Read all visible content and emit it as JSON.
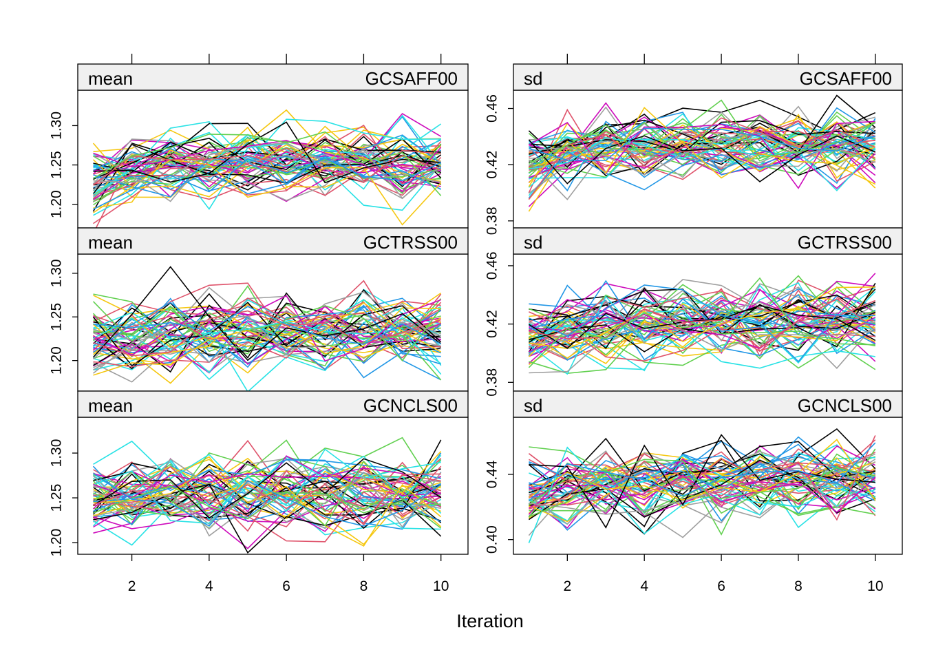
{
  "chart_data": {
    "type": "line",
    "xlabel": "Iteration",
    "x_ticks": [
      2,
      4,
      6,
      8,
      10
    ],
    "xlim": [
      0.6,
      10.7
    ],
    "n_chains": 60,
    "iterations": [
      1,
      2,
      3,
      4,
      5,
      6,
      7,
      8,
      9,
      10
    ],
    "palette": [
      "#000000",
      "#DF536B",
      "#61D04F",
      "#2297E6",
      "#28E2E5",
      "#CD0BBC",
      "#F5C710",
      "#9E9E9E"
    ],
    "panels": [
      {
        "stat": "mean",
        "variable": "GCSAFF00",
        "ylim": [
          1.17,
          1.345
        ],
        "y_ticks": [
          "1.20",
          "1.25",
          "1.30"
        ],
        "center": 1.252,
        "spread": 0.022,
        "drift_start": -0.025
      },
      {
        "stat": "sd",
        "variable": "GCSAFF00",
        "ylim": [
          0.375,
          0.473
        ],
        "y_ticks": [
          "0.38",
          "0.42",
          "0.46"
        ],
        "center": 0.434,
        "spread": 0.011,
        "drift_start": -0.014
      },
      {
        "stat": "mean",
        "variable": "GCTRSS00",
        "ylim": [
          1.165,
          1.322
        ],
        "y_ticks": [
          "1.20",
          "1.25",
          "1.30"
        ],
        "center": 1.233,
        "spread": 0.02,
        "drift_start": -0.015
      },
      {
        "stat": "sd",
        "variable": "GCTRSS00",
        "ylim": [
          0.374,
          0.468
        ],
        "y_ticks": [
          "0.38",
          "0.42",
          "0.46"
        ],
        "center": 0.422,
        "spread": 0.012,
        "drift_start": -0.01
      },
      {
        "stat": "mean",
        "variable": "GCNCLS00",
        "ylim": [
          1.187,
          1.34
        ],
        "y_ticks": [
          "1.20",
          "1.25",
          "1.30"
        ],
        "center": 1.258,
        "spread": 0.02,
        "drift_start": -0.008
      },
      {
        "stat": "sd",
        "variable": "GCNCLS00",
        "ylim": [
          0.391,
          0.475
        ],
        "y_ticks": [
          "0.40",
          "0.44"
        ],
        "center": 0.436,
        "spread": 0.011,
        "drift_start": -0.008
      }
    ]
  }
}
